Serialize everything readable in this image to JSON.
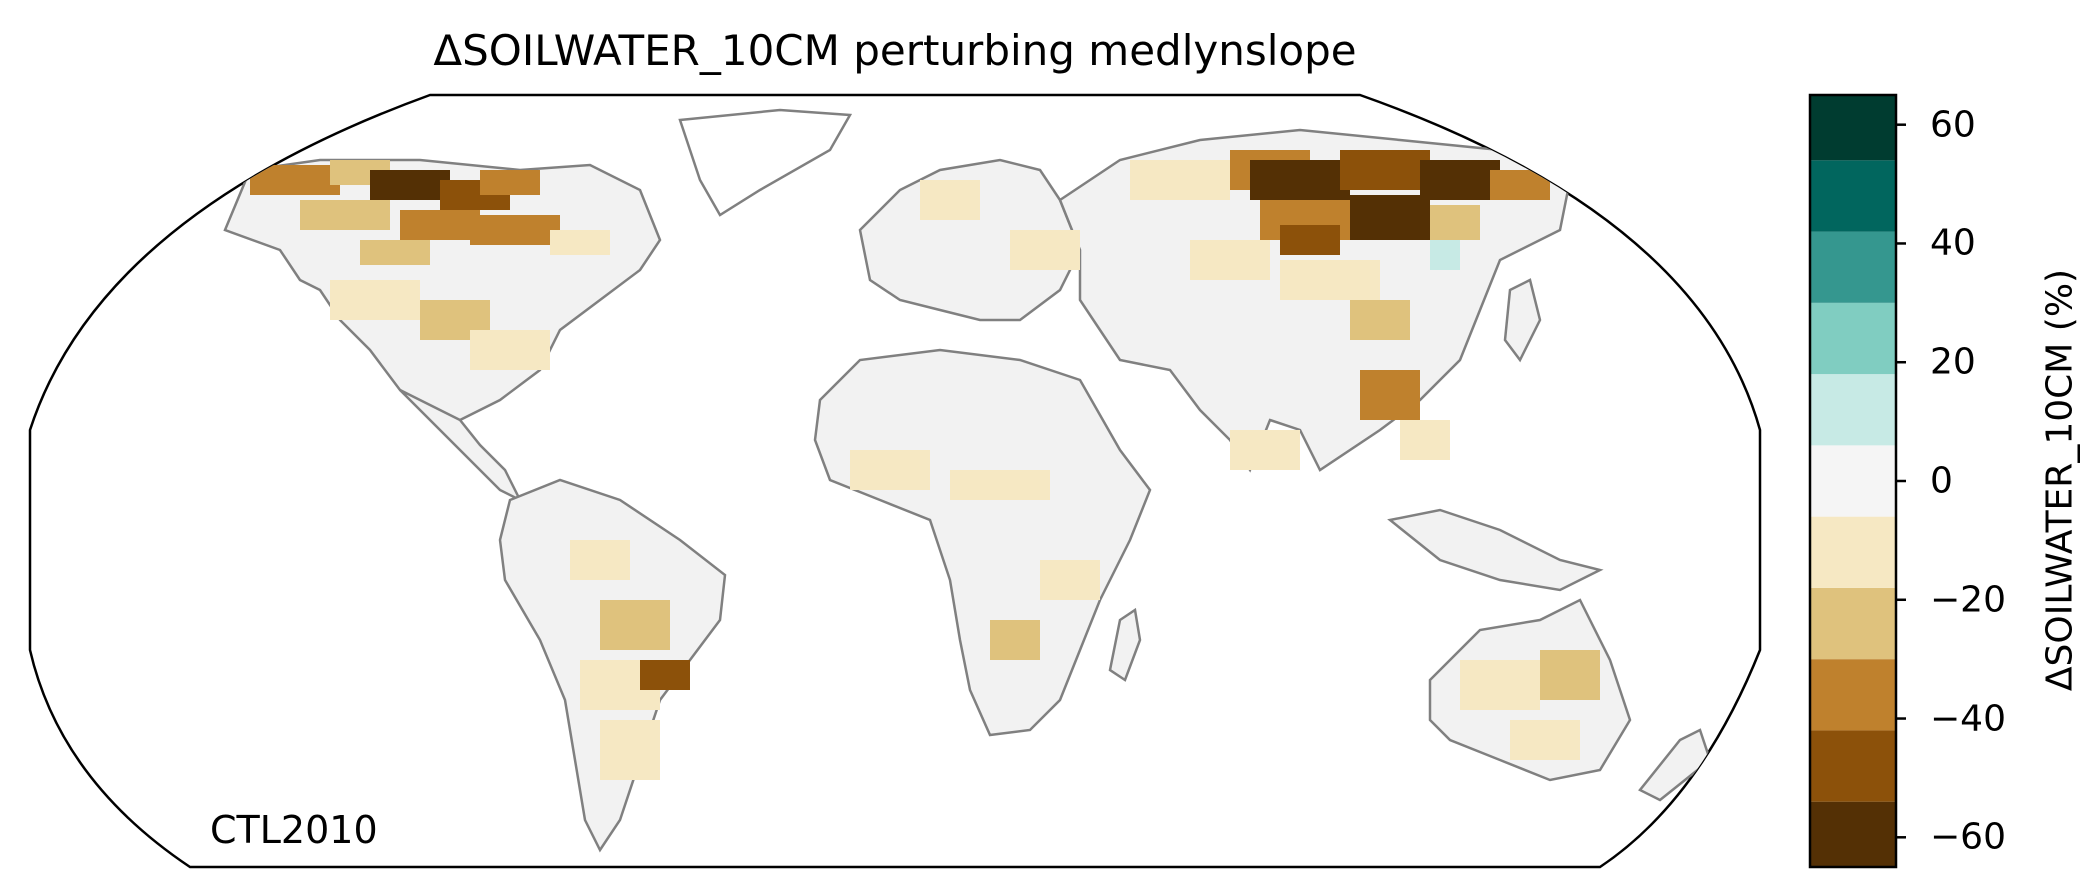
{
  "title": "ΔSOILWATER_10CM perturbing medlynslope",
  "run_label": "CTL2010",
  "colorbar": {
    "label": "ΔSOILWATER_10CM (%)",
    "ticks": [
      {
        "value": 60,
        "text": "60"
      },
      {
        "value": 40,
        "text": "40"
      },
      {
        "value": 20,
        "text": "20"
      },
      {
        "value": 0,
        "text": "0"
      },
      {
        "value": -20,
        "text": "−20"
      },
      {
        "value": -40,
        "text": "−40"
      },
      {
        "value": -60,
        "text": "−60"
      }
    ],
    "range": [
      -65,
      65
    ],
    "bins": [
      {
        "from": -65,
        "to": -54,
        "color": "#543005"
      },
      {
        "from": -54,
        "to": -42,
        "color": "#8c510a"
      },
      {
        "from": -42,
        "to": -30,
        "color": "#bf812d"
      },
      {
        "from": -30,
        "to": -18,
        "color": "#dfc27d"
      },
      {
        "from": -18,
        "to": -6,
        "color": "#f6e8c3"
      },
      {
        "from": -6,
        "to": 6,
        "color": "#f5f5f5"
      },
      {
        "from": 6,
        "to": 18,
        "color": "#c7eae5"
      },
      {
        "from": 18,
        "to": 30,
        "color": "#80cdc1"
      },
      {
        "from": 30,
        "to": 42,
        "color": "#35978f"
      },
      {
        "from": 42,
        "to": 54,
        "color": "#01665e"
      },
      {
        "from": 54,
        "to": 65,
        "color": "#003c30"
      }
    ]
  },
  "map": {
    "projection": "robinson",
    "coastline_color": "#808080",
    "border_color": "#c8c8c8",
    "land_fill_color": "#f2f2f2",
    "ocean_color": "#ffffff"
  }
}
